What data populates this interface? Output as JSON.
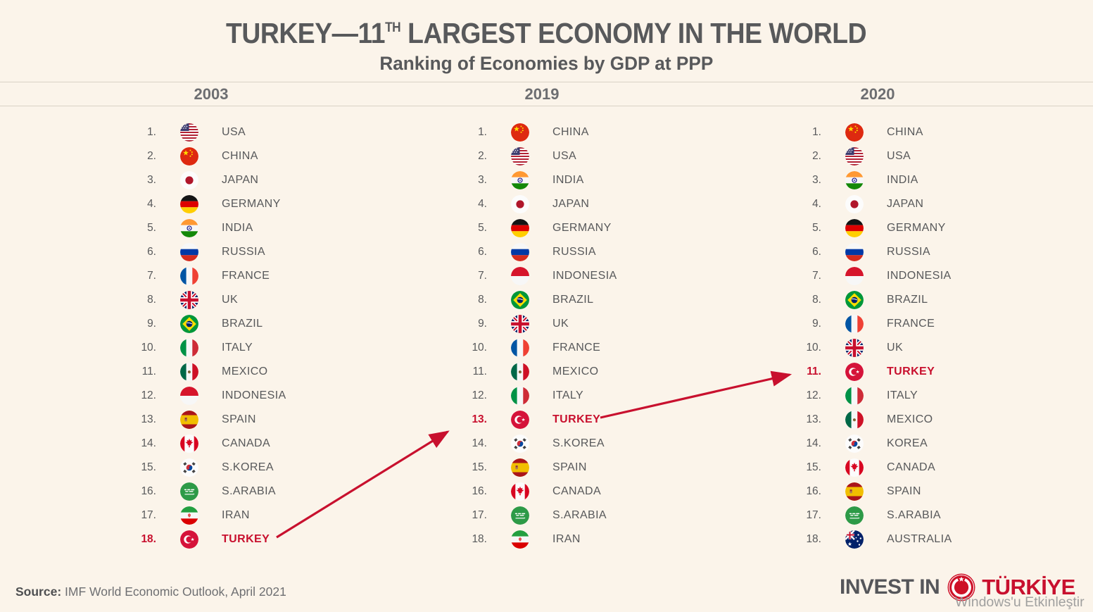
{
  "title": {
    "part1": "TURKEY—11",
    "superscript": "TH",
    "part2": " LARGEST ECONOMY IN THE WORLD"
  },
  "subtitle": "Ranking of Economies by GDP at PPP",
  "colors": {
    "background": "#FBF4EA",
    "accent_red": "#C8102E",
    "text_gray": "#58595B"
  },
  "columns": [
    {
      "year": "2003",
      "entries": [
        {
          "rank": "1.",
          "country": "USA",
          "flag": "usa"
        },
        {
          "rank": "2.",
          "country": "CHINA",
          "flag": "china"
        },
        {
          "rank": "3.",
          "country": "JAPAN",
          "flag": "japan"
        },
        {
          "rank": "4.",
          "country": "GERMANY",
          "flag": "germany"
        },
        {
          "rank": "5.",
          "country": "INDIA",
          "flag": "india"
        },
        {
          "rank": "6.",
          "country": "RUSSIA",
          "flag": "russia"
        },
        {
          "rank": "7.",
          "country": "FRANCE",
          "flag": "france"
        },
        {
          "rank": "8.",
          "country": "UK",
          "flag": "uk"
        },
        {
          "rank": "9.",
          "country": "BRAZIL",
          "flag": "brazil"
        },
        {
          "rank": "10.",
          "country": "ITALY",
          "flag": "italy"
        },
        {
          "rank": "11.",
          "country": "MEXICO",
          "flag": "mexico"
        },
        {
          "rank": "12.",
          "country": "INDONESIA",
          "flag": "indonesia"
        },
        {
          "rank": "13.",
          "country": "SPAIN",
          "flag": "spain"
        },
        {
          "rank": "14.",
          "country": "CANADA",
          "flag": "canada"
        },
        {
          "rank": "15.",
          "country": "S.KOREA",
          "flag": "korea"
        },
        {
          "rank": "16.",
          "country": "S.ARABIA",
          "flag": "saudi"
        },
        {
          "rank": "17.",
          "country": "IRAN",
          "flag": "iran"
        },
        {
          "rank": "18.",
          "country": "TURKEY",
          "flag": "turkey",
          "highlight": true
        }
      ]
    },
    {
      "year": "2019",
      "entries": [
        {
          "rank": "1.",
          "country": "CHINA",
          "flag": "china"
        },
        {
          "rank": "2.",
          "country": "USA",
          "flag": "usa"
        },
        {
          "rank": "3.",
          "country": "INDIA",
          "flag": "india"
        },
        {
          "rank": "4.",
          "country": "JAPAN",
          "flag": "japan"
        },
        {
          "rank": "5.",
          "country": "GERMANY",
          "flag": "germany"
        },
        {
          "rank": "6.",
          "country": "RUSSIA",
          "flag": "russia"
        },
        {
          "rank": "7.",
          "country": "INDONESIA",
          "flag": "indonesia"
        },
        {
          "rank": "8.",
          "country": "BRAZIL",
          "flag": "brazil"
        },
        {
          "rank": "9.",
          "country": "UK",
          "flag": "uk"
        },
        {
          "rank": "10.",
          "country": "FRANCE",
          "flag": "france"
        },
        {
          "rank": "11.",
          "country": "MEXICO",
          "flag": "mexico"
        },
        {
          "rank": "12.",
          "country": "ITALY",
          "flag": "italy"
        },
        {
          "rank": "13.",
          "country": "TURKEY",
          "flag": "turkey",
          "highlight": true
        },
        {
          "rank": "14.",
          "country": "S.KOREA",
          "flag": "korea"
        },
        {
          "rank": "15.",
          "country": "SPAIN",
          "flag": "spain"
        },
        {
          "rank": "16.",
          "country": "CANADA",
          "flag": "canada"
        },
        {
          "rank": "17.",
          "country": "S.ARABIA",
          "flag": "saudi"
        },
        {
          "rank": "18.",
          "country": "IRAN",
          "flag": "iran"
        }
      ]
    },
    {
      "year": "2020",
      "entries": [
        {
          "rank": "1.",
          "country": "CHINA",
          "flag": "china"
        },
        {
          "rank": "2.",
          "country": "USA",
          "flag": "usa"
        },
        {
          "rank": "3.",
          "country": "INDIA",
          "flag": "india"
        },
        {
          "rank": "4.",
          "country": "JAPAN",
          "flag": "japan"
        },
        {
          "rank": "5.",
          "country": "GERMANY",
          "flag": "germany"
        },
        {
          "rank": "6.",
          "country": "RUSSIA",
          "flag": "russia"
        },
        {
          "rank": "7.",
          "country": "INDONESIA",
          "flag": "indonesia"
        },
        {
          "rank": "8.",
          "country": "BRAZIL",
          "flag": "brazil"
        },
        {
          "rank": "9.",
          "country": "FRANCE",
          "flag": "france"
        },
        {
          "rank": "10.",
          "country": "UK",
          "flag": "uk"
        },
        {
          "rank": "11.",
          "country": "TURKEY",
          "flag": "turkey",
          "highlight": true
        },
        {
          "rank": "12.",
          "country": "ITALY",
          "flag": "italy"
        },
        {
          "rank": "13.",
          "country": "MEXICO",
          "flag": "mexico"
        },
        {
          "rank": "14.",
          "country": "KOREA",
          "flag": "korea"
        },
        {
          "rank": "15.",
          "country": "CANADA",
          "flag": "canada"
        },
        {
          "rank": "16.",
          "country": "SPAIN",
          "flag": "spain"
        },
        {
          "rank": "17.",
          "country": "S.ARABIA",
          "flag": "saudi"
        },
        {
          "rank": "18.",
          "country": "AUSTRALIA",
          "flag": "australia"
        }
      ]
    }
  ],
  "source": {
    "label": "Source:",
    "text": " IMF World Economic Outlook, April 2021"
  },
  "brand": {
    "invest_in": "INVEST IN",
    "turkiye": "TÜRKİYE"
  },
  "watermark": "Windows'u Etkinleştir"
}
